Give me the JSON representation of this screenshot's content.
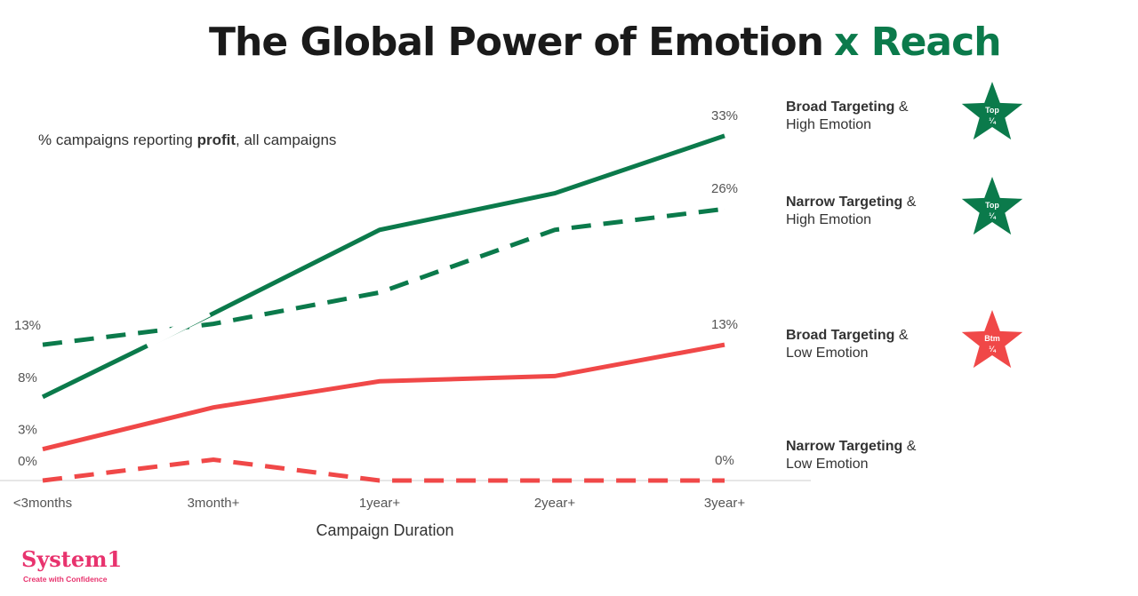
{
  "chart_data": {
    "type": "line",
    "title": "The Global Power of Emotion",
    "title_highlight": "x Reach",
    "subtitle_pre": "% campaigns reporting ",
    "subtitle_bold": "profit",
    "subtitle_post": ", all campaigns",
    "xlabel": "Campaign Duration",
    "ylabel": "",
    "categories": [
      "<3months",
      "3month+",
      "1year+",
      "2year+",
      "3year+"
    ],
    "ylim": [
      0,
      35
    ],
    "grid": false,
    "legend_placement": "right",
    "series": [
      {
        "name_bold": "Broad Targeting",
        "name_amp": " &",
        "name_line2": "High Emotion",
        "color": "#0b7a4b",
        "dashed": false,
        "values": [
          8,
          16,
          24,
          27.5,
          33
        ],
        "labels": [
          "8%",
          "",
          "",
          "",
          "33%"
        ],
        "badge": [
          "Top",
          "¼"
        ]
      },
      {
        "name_bold": "Narrow Targeting",
        "name_amp": " &",
        "name_line2": "High Emotion",
        "color": "#0b7a4b",
        "dashed": true,
        "values": [
          13,
          15,
          18,
          24,
          26
        ],
        "labels": [
          "13%",
          "",
          "",
          "",
          "26%"
        ],
        "badge": [
          "Top",
          "¼"
        ]
      },
      {
        "name_bold": "Broad Targeting",
        "name_amp": " &",
        "name_line2": "Low Emotion",
        "color": "#f04848",
        "dashed": false,
        "values": [
          3,
          7,
          9.5,
          10,
          13
        ],
        "labels": [
          "3%",
          "",
          "",
          "",
          "13%"
        ],
        "badge": [
          "Btm",
          "¼"
        ]
      },
      {
        "name_bold": "Narrow Targeting",
        "name_amp": " &",
        "name_line2": "Low Emotion",
        "color": "#f04848",
        "dashed": true,
        "values": [
          0,
          2,
          0,
          0,
          0
        ],
        "labels": [
          "0%",
          "",
          "",
          "",
          "0%"
        ],
        "badge": null
      }
    ]
  },
  "brand": {
    "name": "System1",
    "tagline": "Create with Confidence",
    "color": "#e8336e"
  },
  "colors": {
    "accent": "#0b7a4b",
    "title": "#1a1a1a"
  }
}
